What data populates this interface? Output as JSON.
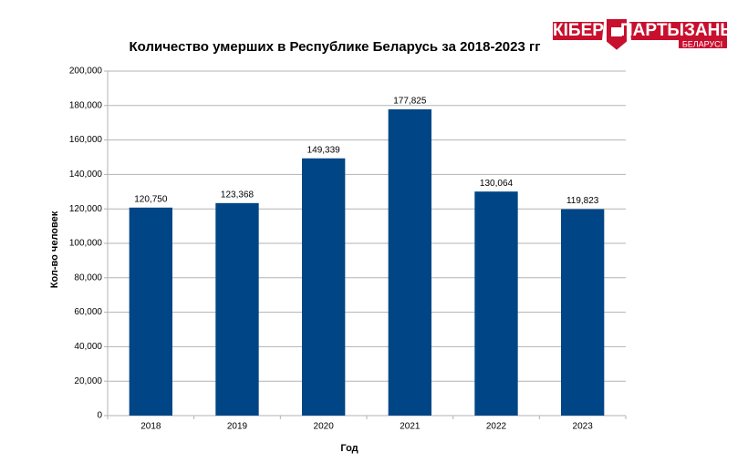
{
  "logo": {
    "left": "КІБЕР",
    "right": "ПАРТЫЗАНЫ",
    "sub": "БЕЛАРУСІ"
  },
  "chart_data": {
    "type": "bar",
    "title": "Количество умерших в Республике Беларусь за 2018-2023 гг",
    "x_label": "Год",
    "y_label": "Кол-во человек",
    "categories": [
      "2018",
      "2019",
      "2020",
      "2021",
      "2022",
      "2023"
    ],
    "values": [
      120750,
      123368,
      149339,
      177825,
      130064,
      119823
    ],
    "value_labels": [
      "120,750",
      "123,368",
      "149,339",
      "177,825",
      "130,064",
      "119,823"
    ],
    "color": "#004586",
    "ylim": [
      0,
      200000
    ],
    "yticks": [
      0,
      {
        "value": 20000,
        "label": "20,000"
      },
      {
        "value": 40000,
        "label": "40,000"
      },
      {
        "value": 60000,
        "label": "60,000"
      },
      {
        "value": 80000,
        "label": "80,000"
      },
      {
        "value": 100000,
        "label": "100,000"
      },
      {
        "value": 120000,
        "label": "120,000"
      },
      {
        "value": 140000,
        "label": "140,000"
      },
      {
        "value": 160000,
        "label": "160,000"
      },
      {
        "value": 180000,
        "label": "180,000"
      },
      {
        "value": 200000,
        "label": "200,000"
      }
    ],
    "grid": true
  }
}
